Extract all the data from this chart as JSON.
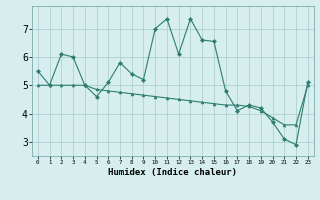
{
  "line1_x": [
    0,
    1,
    2,
    3,
    4,
    5,
    6,
    7,
    8,
    9,
    10,
    11,
    12,
    13,
    14,
    15,
    16,
    17,
    18,
    19,
    20,
    21,
    22,
    23
  ],
  "line1_y": [
    5.5,
    5.0,
    6.1,
    6.0,
    5.0,
    4.6,
    5.1,
    5.8,
    5.4,
    5.2,
    7.0,
    7.35,
    6.1,
    7.35,
    6.6,
    6.55,
    4.8,
    4.1,
    4.3,
    4.2,
    3.7,
    3.1,
    2.9,
    5.1
  ],
  "line2_x": [
    0,
    1,
    2,
    3,
    4,
    5,
    6,
    7,
    8,
    9,
    10,
    11,
    12,
    13,
    14,
    15,
    16,
    17,
    18,
    19,
    20,
    21,
    22,
    23
  ],
  "line2_y": [
    5.0,
    5.0,
    5.0,
    5.0,
    5.0,
    4.85,
    4.8,
    4.75,
    4.7,
    4.65,
    4.6,
    4.55,
    4.5,
    4.45,
    4.4,
    4.35,
    4.3,
    4.3,
    4.25,
    4.1,
    3.85,
    3.6,
    3.6,
    5.0
  ],
  "line_color": "#2e7d6e",
  "bg_color": "#d6eeee",
  "grid_color": "#b0d0d0",
  "xlabel": "Humidex (Indice chaleur)",
  "ylim": [
    2.5,
    7.8
  ],
  "xlim": [
    -0.5,
    23.5
  ],
  "xticks": [
    0,
    1,
    2,
    3,
    4,
    5,
    6,
    7,
    8,
    9,
    10,
    11,
    12,
    13,
    14,
    15,
    16,
    17,
    18,
    19,
    20,
    21,
    22,
    23
  ],
  "yticks": [
    3,
    4,
    5,
    6,
    7
  ],
  "xlabel_fontsize": 6.5,
  "xtick_fontsize": 4.2,
  "ytick_fontsize": 7.0,
  "marker_size": 2.0,
  "linewidth": 0.8
}
